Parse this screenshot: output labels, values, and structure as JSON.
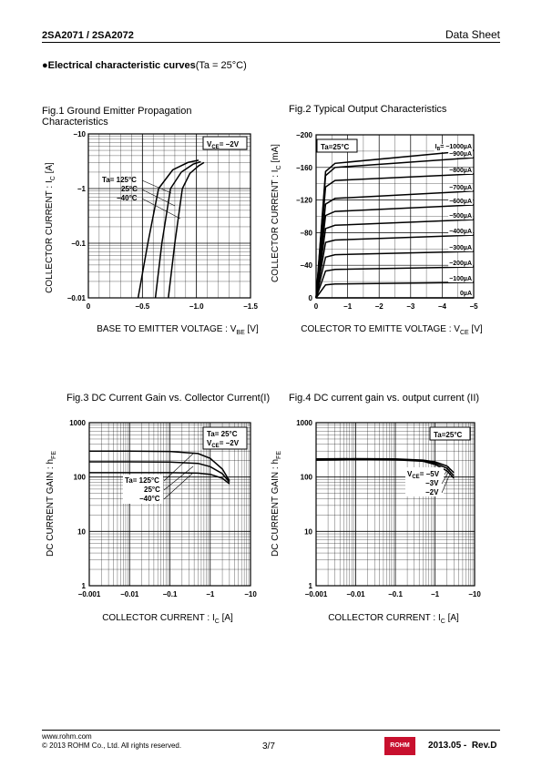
{
  "header": {
    "part": "2SA2071 / 2SA2072",
    "doc_type": "Data Sheet"
  },
  "section": {
    "bullet": "●",
    "title": "Electrical characteristic curves",
    "condition": "(Ta = 25°C)"
  },
  "figures": [
    {
      "id": "fig1",
      "title": "Fig.1 Ground Emitter Propagation Characteristics",
      "xlabel": "BASE TO EMITTER VOLTAGE : V",
      "xlabel_sub": "BE",
      "xlabel_unit": " [V]",
      "ylabel": "COLLECTOR CURRENT : I",
      "ylabel_sub": "C",
      "ylabel_unit": " [A]",
      "legend_box": {
        "main": "V",
        "sub": "CE",
        "rest": "= −2V"
      },
      "temps": [
        "Ta= 125°C",
        "25°C",
        "−40°C"
      ]
    },
    {
      "id": "fig2",
      "title": "Fig.2 Typical Output Characteristics",
      "xlabel": "COLECTOR TO EMITTE VOLTAGE : V",
      "xlabel_sub": "CE",
      "xlabel_unit": " [V]",
      "ylabel": "COLLECTOR CURRENT : I",
      "ylabel_sub": "C",
      "ylabel_unit": " [mA]",
      "legend_box": "Ta=25°C",
      "ib_prefix": "I",
      "ib_sub": "B",
      "ib_labels": [
        "= −1000µA",
        "−900µA",
        "−800µA",
        "−700µA",
        "−600µA",
        "−500µA",
        "−400µA",
        "−300µA",
        "−200µA",
        "−100µA",
        "0µA"
      ]
    },
    {
      "id": "fig3",
      "title": "Fig.3 DC Current Gain vs. Collector Current(I)",
      "xlabel": "COLLECTOR CURRENT : I",
      "xlabel_sub": "C",
      "xlabel_unit": " [A]",
      "ylabel": "DC CURRENT GAIN : h",
      "ylabel_sub": "FE",
      "legend_box_line1": "Ta= 25°C",
      "legend_box_line2": {
        "main": "V",
        "sub": "CE",
        "rest": "= −2V"
      },
      "temps": [
        "Ta= 125°C",
        "25°C",
        "−40°C"
      ]
    },
    {
      "id": "fig4",
      "title": "Fig.4 DC current gain vs. output current (II)",
      "xlabel": "COLLECTOR CURRENT : I",
      "xlabel_sub": "C",
      "xlabel_unit": " [A]",
      "ylabel": "DC CURRENT GAIN : h",
      "ylabel_sub": "FE",
      "legend_box": "Ta=25°C",
      "vce_labels": [
        {
          "main": "V",
          "sub": "CE",
          "rest": "= −5V"
        },
        {
          "rest": "−3V"
        },
        {
          "rest": "−2V"
        }
      ]
    }
  ],
  "chart_data": [
    {
      "type": "line",
      "title": "Fig.1 Ground Emitter Propagation Characteristics",
      "xlabel": "BASE TO EMITTER VOLTAGE : VBE [V]",
      "ylabel": "COLLECTOR CURRENT : IC [A]",
      "xlim": [
        0,
        -1.5
      ],
      "ylim": [
        -0.01,
        -10
      ],
      "y_scale": "log",
      "x_ticks": [
        "0",
        "−0.5",
        "−1.0",
        "−1.5"
      ],
      "y_ticks": [
        "−0.01",
        "−0.1",
        "−1",
        "−10"
      ],
      "grid": true,
      "series": [
        {
          "name": "Ta= 125°C",
          "x": [
            -0.46,
            -0.55,
            -0.65,
            -0.78,
            -0.92,
            -1.02
          ],
          "y": [
            -0.01,
            -0.1,
            -1,
            -2.2,
            -3.0,
            -3.3
          ]
        },
        {
          "name": "25°C",
          "x": [
            -0.62,
            -0.68,
            -0.76,
            -0.86,
            -0.97,
            -1.04
          ],
          "y": [
            -0.01,
            -0.1,
            -1,
            -2.0,
            -2.8,
            -3.1
          ]
        },
        {
          "name": "−40°C",
          "x": [
            -0.74,
            -0.8,
            -0.87,
            -0.94,
            -1.02,
            -1.07
          ],
          "y": [
            -0.01,
            -0.1,
            -1,
            -1.9,
            -2.6,
            -3.0
          ]
        }
      ]
    },
    {
      "type": "line",
      "title": "Fig.2 Typical Output Characteristics",
      "xlabel": "COLECTOR TO EMITTE VOLTAGE : VCE [V]",
      "ylabel": "COLLECTOR CURRENT : IC [mA]",
      "xlim": [
        0,
        -5
      ],
      "ylim": [
        0,
        -200
      ],
      "x_ticks": [
        "0",
        "−1",
        "−2",
        "−3",
        "−4",
        "−5"
      ],
      "y_ticks": [
        "0",
        "−40",
        "−80",
        "−120",
        "−160",
        "−200"
      ],
      "grid": true,
      "series": [
        {
          "name": "−1000µA",
          "x": [
            0,
            -0.3,
            -0.6,
            -5
          ],
          "y": [
            0,
            -155,
            -165,
            -181
          ]
        },
        {
          "name": "−900µA",
          "x": [
            0,
            -0.3,
            -0.6,
            -5
          ],
          "y": [
            0,
            -150,
            -160,
            -172
          ]
        },
        {
          "name": "−800µA",
          "x": [
            0,
            -0.3,
            -0.6,
            -5
          ],
          "y": [
            0,
            -136,
            -144,
            -152
          ]
        },
        {
          "name": "−700µA",
          "x": [
            0,
            -0.3,
            -0.6,
            -5
          ],
          "y": [
            0,
            -115,
            -122,
            -131
          ]
        },
        {
          "name": "−600µA",
          "x": [
            0,
            -0.3,
            -0.6,
            -5
          ],
          "y": [
            0,
            -101,
            -106,
            -114
          ]
        },
        {
          "name": "−500µA",
          "x": [
            0,
            -0.3,
            -0.6,
            -5
          ],
          "y": [
            0,
            -85,
            -89,
            -96
          ]
        },
        {
          "name": "−400µA",
          "x": [
            0,
            -0.3,
            -0.6,
            -5
          ],
          "y": [
            0,
            -68,
            -71,
            -77
          ]
        },
        {
          "name": "−300µA",
          "x": [
            0,
            -0.3,
            -0.6,
            -5
          ],
          "y": [
            0,
            -50,
            -53,
            -57
          ]
        },
        {
          "name": "−200µA",
          "x": [
            0,
            -0.3,
            -0.6,
            -5
          ],
          "y": [
            0,
            -33,
            -35,
            -38
          ]
        },
        {
          "name": "−100µA",
          "x": [
            0,
            -0.3,
            -0.6,
            -5
          ],
          "y": [
            0,
            -16,
            -17,
            -19
          ]
        },
        {
          "name": "0µA",
          "x": [
            0,
            -5
          ],
          "y": [
            0,
            0
          ]
        }
      ]
    },
    {
      "type": "line",
      "title": "Fig.3 DC Current Gain vs. Collector Current(I)",
      "xlabel": "COLLECTOR CURRENT : IC [A]",
      "ylabel": "DC CURRENT GAIN : hFE",
      "x_scale": "log",
      "y_scale": "log",
      "xlim": [
        -0.001,
        -10
      ],
      "ylim": [
        1,
        1000
      ],
      "x_ticks": [
        "−0.001",
        "−0.01",
        "−0.1",
        "−1",
        "−10"
      ],
      "y_ticks": [
        "1",
        "10",
        "100",
        "1000"
      ],
      "grid": true,
      "series": [
        {
          "name": "Ta= 125°C",
          "x": [
            -0.001,
            -0.01,
            -0.1,
            -0.5,
            -1.0,
            -2.0,
            -3.0
          ],
          "y": [
            300,
            300,
            295,
            270,
            220,
            140,
            85
          ]
        },
        {
          "name": "25°C",
          "x": [
            -0.001,
            -0.01,
            -0.1,
            -0.5,
            -1.0,
            -2.0,
            -3.0
          ],
          "y": [
            190,
            190,
            188,
            178,
            155,
            115,
            80
          ]
        },
        {
          "name": "−40°C",
          "x": [
            -0.001,
            -0.01,
            -0.1,
            -0.5,
            -1.0,
            -2.0,
            -3.0
          ],
          "y": [
            120,
            120,
            120,
            118,
            112,
            95,
            75
          ]
        }
      ]
    },
    {
      "type": "line",
      "title": "Fig.4 DC current gain vs. output current (II)",
      "xlabel": "COLLECTOR CURRENT : IC [A]",
      "ylabel": "DC CURRENT GAIN : hFE",
      "x_scale": "log",
      "y_scale": "log",
      "xlim": [
        -0.001,
        -10
      ],
      "ylim": [
        1,
        1000
      ],
      "x_ticks": [
        "−0.001",
        "−0.01",
        "−0.1",
        "−1",
        "−10"
      ],
      "y_ticks": [
        "1",
        "10",
        "100",
        "1000"
      ],
      "grid": true,
      "series": [
        {
          "name": "VCE= −5V",
          "x": [
            -0.001,
            -0.01,
            -0.1,
            -0.5,
            -1.0,
            -2.0,
            -3.0
          ],
          "y": [
            215,
            218,
            215,
            205,
            190,
            160,
            120
          ]
        },
        {
          "name": "−3V",
          "x": [
            -0.001,
            -0.01,
            -0.1,
            -0.5,
            -1.0,
            -2.0,
            -3.0
          ],
          "y": [
            210,
            214,
            212,
            200,
            180,
            145,
            105
          ]
        },
        {
          "name": "−2V",
          "x": [
            -0.001,
            -0.01,
            -0.1,
            -0.5,
            -1.0,
            -2.0,
            -3.0
          ],
          "y": [
            205,
            210,
            208,
            195,
            170,
            130,
            95
          ]
        }
      ]
    }
  ],
  "footer": {
    "url": "www.rohm.com",
    "copyright": "© 2013  ROHM Co., Ltd. All rights reserved.",
    "page": "3/7",
    "logo_text": "ROHM",
    "revision": "2013.05 -  Rev.D"
  },
  "colors": {
    "text": "#000000",
    "grid": "#000000",
    "logo": "#c8102e"
  }
}
